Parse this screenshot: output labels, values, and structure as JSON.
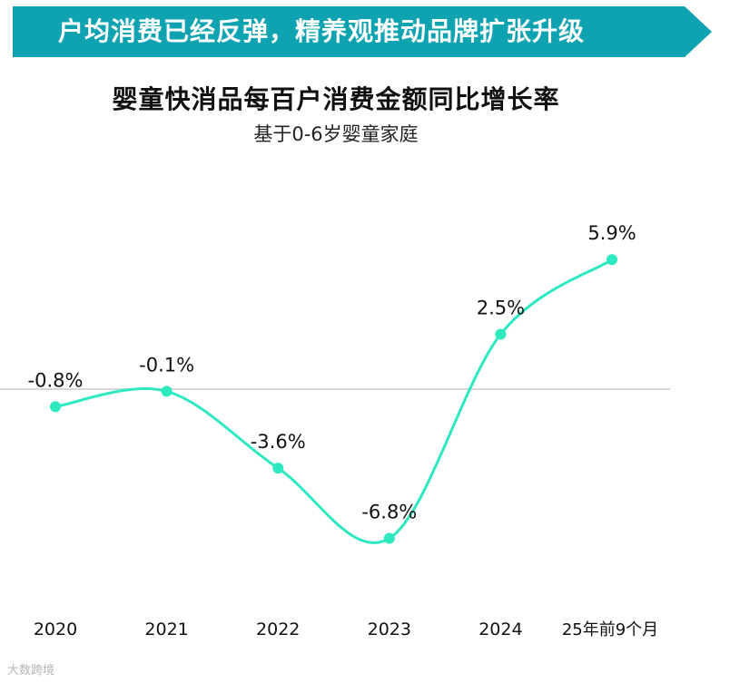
{
  "banner": {
    "text": "户均消费已经反弹，精养观推动品牌扩张升级",
    "color": "#0fa3b1"
  },
  "watermark": "大数跨境",
  "chart_data": {
    "type": "line",
    "title": "婴童快消品每百户消费金额同比增长率",
    "subtitle": "基于0-6岁婴童家庭",
    "categories": [
      "2020",
      "2021",
      "2022",
      "2023",
      "2024",
      "25年前9个月"
    ],
    "series": [
      {
        "name": "同比增长率",
        "values": [
          -0.8,
          -0.1,
          -3.6,
          -6.8,
          2.5,
          5.9
        ],
        "labels": [
          "-0.8%",
          "-0.1%",
          "-3.6%",
          "-6.8%",
          "2.5%",
          "5.9%"
        ],
        "color": "#2ee8c0"
      }
    ],
    "ylim": [
      -10,
      12
    ],
    "zero_line": true,
    "xlabel": "",
    "ylabel": ""
  }
}
